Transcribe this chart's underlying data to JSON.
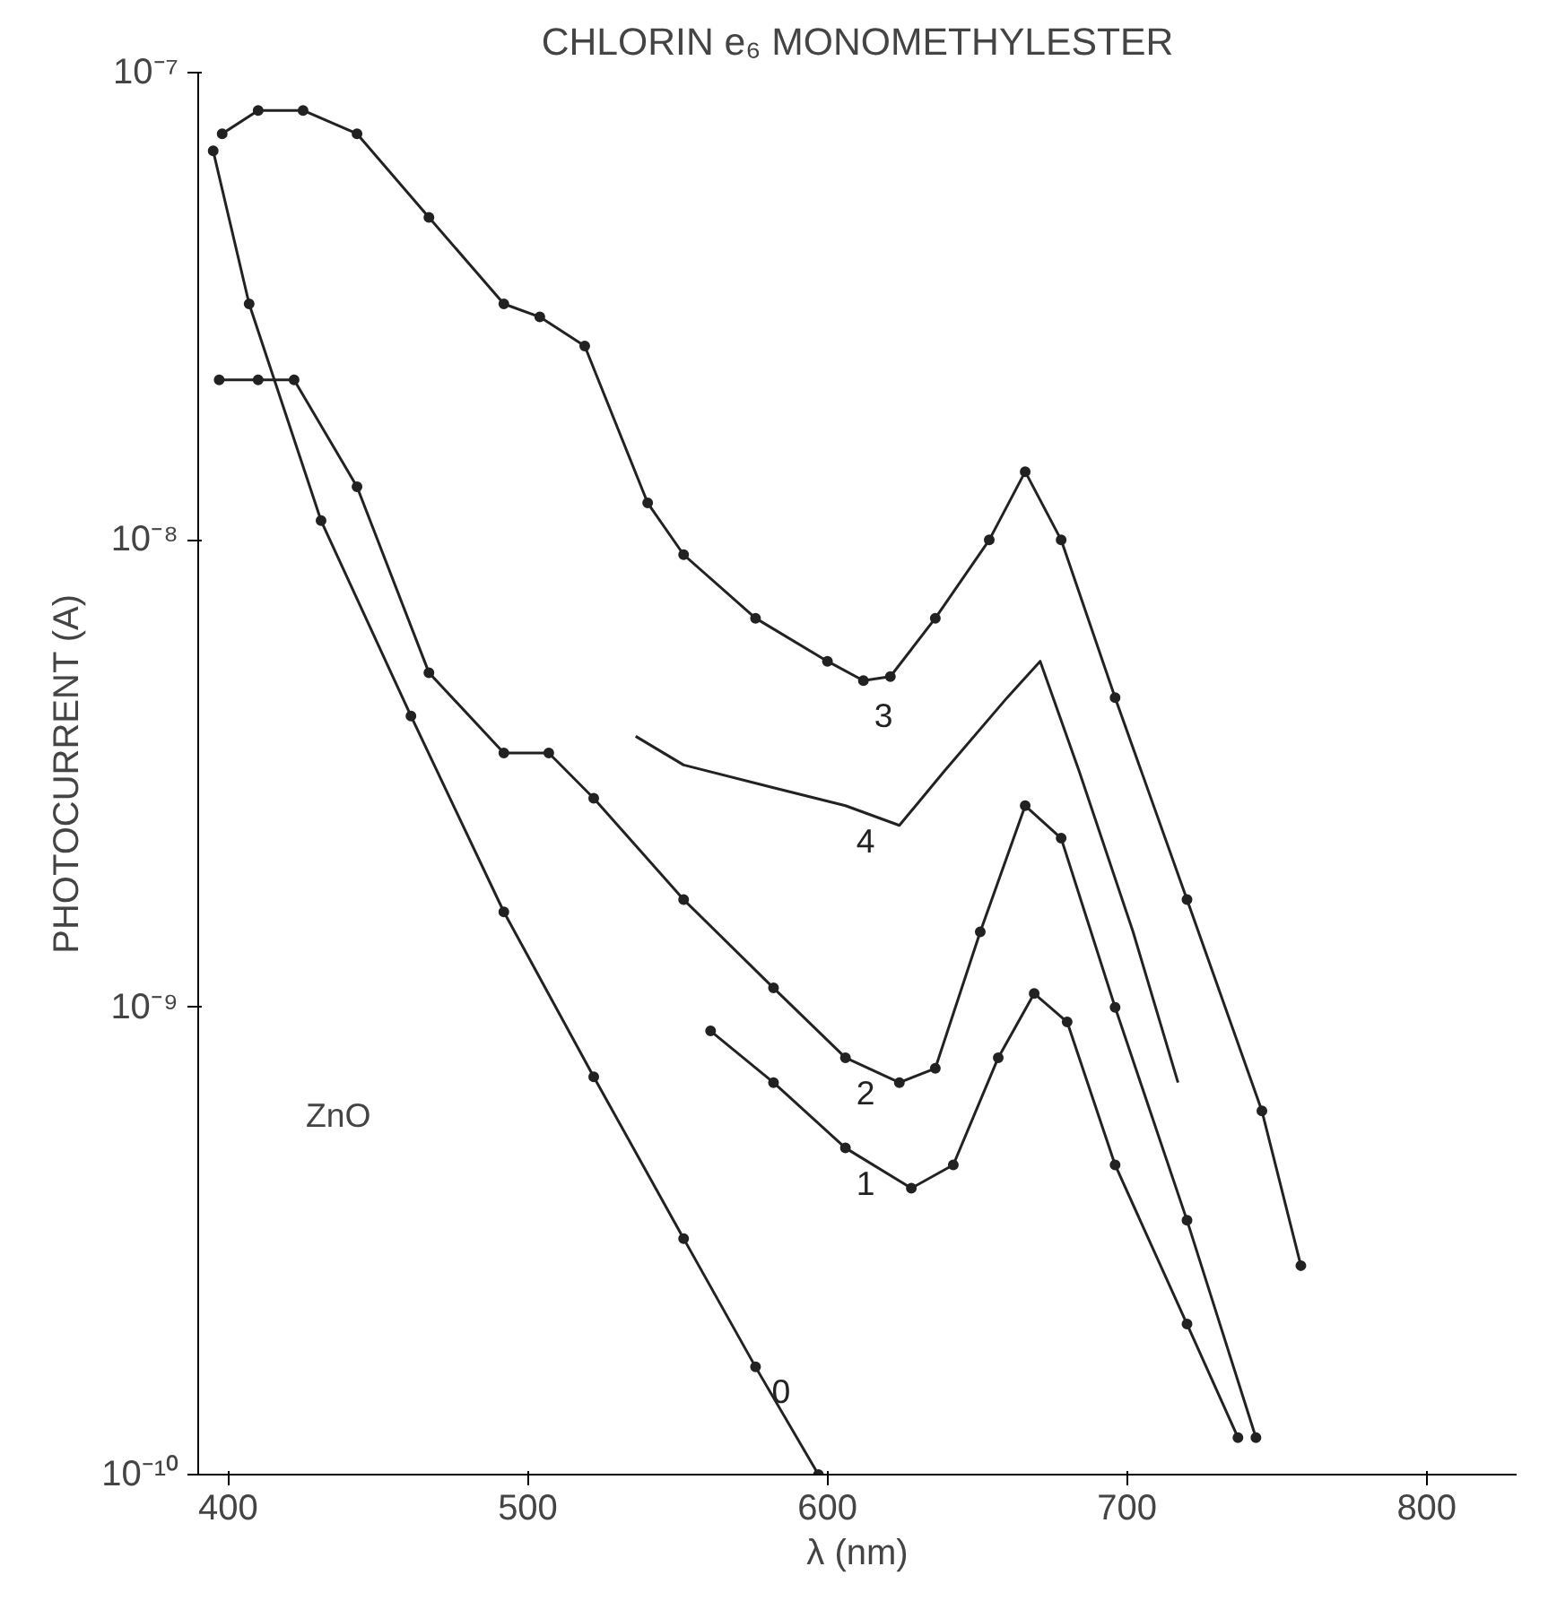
{
  "chart_data": {
    "type": "line",
    "title": "CHLORIN e₆ MONOMETHYLESTER",
    "xlabel": "λ (nm)",
    "ylabel": "PHOTOCURRENT (A)",
    "log": "y",
    "grid": false,
    "marker": "circle",
    "line_style": "solid",
    "xlim": [
      390,
      830
    ],
    "xticks": [
      400,
      500,
      600,
      700,
      800
    ],
    "ylim": [
      1e-10,
      1e-07
    ],
    "yticks": [
      {
        "value": 1e-10,
        "label": "10⁻¹⁰"
      },
      {
        "value": 1e-09,
        "label": "10⁻⁹"
      },
      {
        "value": 1e-08,
        "label": "10⁻⁸"
      },
      {
        "value": 1e-07,
        "label": "10⁻⁷"
      }
    ],
    "annotations": [
      "ZnO"
    ],
    "series": [
      {
        "name": "0",
        "color": "#222222",
        "x": [
          395,
          407,
          431,
          461,
          492,
          522,
          552,
          576,
          597
        ],
        "values": [
          6.8e-08,
          3.2e-08,
          1.1e-08,
          4.2e-09,
          1.6e-09,
          7.1e-10,
          3.2e-10,
          1.7e-10,
          1e-10
        ]
      },
      {
        "name": "1",
        "color": "#222222",
        "x": [
          561,
          582,
          606,
          628,
          642,
          657,
          669,
          680,
          696,
          720,
          737
        ],
        "values": [
          8.9e-10,
          6.9e-10,
          5e-10,
          4.1e-10,
          4.6e-10,
          7.8e-10,
          1.07e-09,
          9.3e-10,
          4.6e-10,
          2.1e-10,
          1.2e-10
        ]
      },
      {
        "name": "2",
        "color": "#222222",
        "x": [
          397,
          410,
          422,
          443,
          467,
          492,
          507,
          522,
          552,
          582,
          606,
          624,
          636,
          651,
          666,
          678,
          696,
          720,
          743
        ],
        "values": [
          2.2e-08,
          2.2e-08,
          2.2e-08,
          1.3e-08,
          5.2e-09,
          3.5e-09,
          3.5e-09,
          2.8e-09,
          1.7e-09,
          1.1e-09,
          7.8e-10,
          6.9e-10,
          7.4e-10,
          1.45e-09,
          2.7e-09,
          2.3e-09,
          1e-09,
          3.5e-10,
          1.2e-10
        ]
      },
      {
        "name": "3",
        "color": "#222222",
        "x": [
          398,
          410,
          425,
          443,
          467,
          492,
          504,
          519,
          540,
          552,
          576,
          600,
          612,
          621,
          636,
          654,
          666,
          678,
          696,
          720,
          745,
          758
        ],
        "values": [
          7.4e-08,
          8.3e-08,
          8.3e-08,
          7.4e-08,
          4.9e-08,
          3.2e-08,
          3e-08,
          2.6e-08,
          1.2e-08,
          9.3e-09,
          6.8e-09,
          5.5e-09,
          5e-09,
          5.1e-09,
          6.8e-09,
          1e-08,
          1.4e-08,
          1e-08,
          4.6e-09,
          1.7e-09,
          6e-10,
          2.8e-10
        ]
      },
      {
        "name": "4",
        "color": "#222222",
        "marker": "none",
        "x": [
          536,
          552,
          582,
          606,
          624,
          639,
          660,
          671,
          684,
          702,
          717
        ],
        "values": [
          3.8e-09,
          3.3e-09,
          2.95e-09,
          2.7e-09,
          2.45e-09,
          3.2e-09,
          4.6e-09,
          5.5e-09,
          3.2e-09,
          1.45e-09,
          6.9e-10
        ]
      }
    ]
  }
}
